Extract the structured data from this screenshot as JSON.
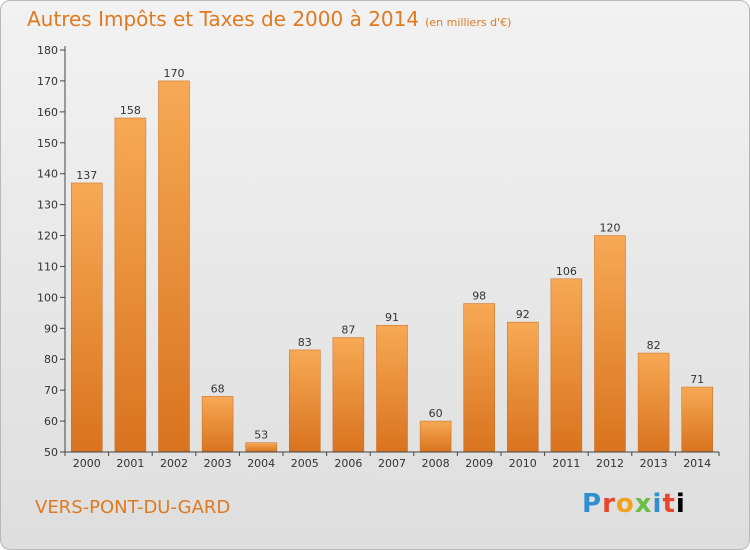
{
  "header": {
    "title": "Autres Impôts et Taxes de 2000 à 2014",
    "unit": "(en milliers d'€)"
  },
  "footer": {
    "commune": "VERS-PONT-DU-GARD",
    "logo_letters": [
      "P",
      "r",
      "o",
      "x",
      "i",
      "t",
      "i"
    ]
  },
  "colors": {
    "bar_top": "#f7a955",
    "bar_bottom": "#d9731f",
    "title": "#e07a20"
  },
  "chart_data": {
    "type": "bar",
    "title": "Autres Impôts et Taxes de 2000 à 2014",
    "subtitle": "(en milliers d'€)",
    "xlabel": "",
    "ylabel": "",
    "categories": [
      "2000",
      "2001",
      "2002",
      "2003",
      "2004",
      "2005",
      "2006",
      "2007",
      "2008",
      "2009",
      "2010",
      "2011",
      "2012",
      "2013",
      "2014"
    ],
    "values": [
      137,
      158,
      170,
      68,
      53,
      83,
      87,
      91,
      60,
      98,
      92,
      106,
      120,
      82,
      71
    ],
    "ylim": [
      50,
      180
    ],
    "yticks": [
      50,
      60,
      70,
      80,
      90,
      100,
      110,
      120,
      130,
      140,
      150,
      160,
      170,
      180
    ],
    "grid": false,
    "legend": "none"
  }
}
